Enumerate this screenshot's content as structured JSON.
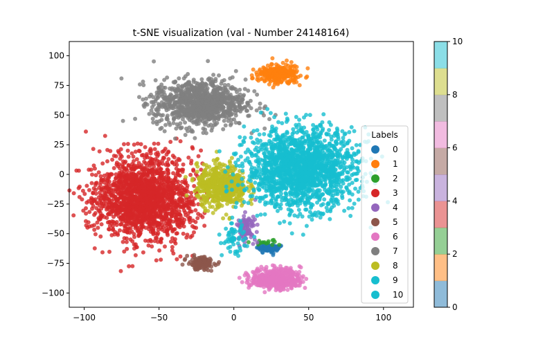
{
  "chart_data": {
    "type": "scatter",
    "title": "t-SNE visualization (val - Number 24148164)",
    "xlabel": "",
    "ylabel": "",
    "xlim": [
      -110,
      120
    ],
    "ylim": [
      -112,
      112
    ],
    "xticks": [
      -100,
      -50,
      0,
      50,
      100
    ],
    "yticks": [
      -100,
      -75,
      -50,
      -25,
      0,
      25,
      50,
      75,
      100
    ],
    "legend": {
      "title": "Labels",
      "placement": "center-right",
      "entries": [
        "0",
        "1",
        "2",
        "3",
        "4",
        "5",
        "6",
        "7",
        "8",
        "9",
        "10"
      ]
    },
    "series": [
      {
        "name": "0",
        "color": "#1f77b4",
        "center": [
          23,
          -62
        ],
        "spread": [
          6,
          3
        ],
        "approx_points": 120
      },
      {
        "name": "1",
        "color": "#ff7f0e",
        "center": [
          30,
          85
        ],
        "spread": [
          12,
          7
        ],
        "approx_points": 250
      },
      {
        "name": "2",
        "color": "#2ca02c",
        "center": [
          22,
          -58
        ],
        "spread": [
          8,
          4
        ],
        "approx_points": 15
      },
      {
        "name": "3",
        "color": "#d62728",
        "center": [
          -60,
          -20
        ],
        "spread": [
          30,
          32
        ],
        "approx_points": 1800
      },
      {
        "name": "4",
        "color": "#9467bd",
        "center": [
          8,
          -45
        ],
        "spread": [
          6,
          10
        ],
        "approx_points": 90
      },
      {
        "name": "5",
        "color": "#8c564b",
        "center": [
          -22,
          -75
        ],
        "spread": [
          8,
          5
        ],
        "approx_points": 130
      },
      {
        "name": "6",
        "color": "#e377c2",
        "center": [
          28,
          -88
        ],
        "spread": [
          15,
          8
        ],
        "approx_points": 450
      },
      {
        "name": "7",
        "color": "#7f7f7f",
        "center": [
          -23,
          60
        ],
        "spread": [
          28,
          18
        ],
        "approx_points": 1000
      },
      {
        "name": "8",
        "color": "#bcbd22",
        "center": [
          -8,
          -10
        ],
        "spread": [
          15,
          16
        ],
        "approx_points": 600
      },
      {
        "name": "9",
        "color": "#17becf",
        "center": [
          45,
          5
        ],
        "spread": [
          33,
          30
        ],
        "approx_points": 1800
      },
      {
        "name": "10",
        "color": "#17becf",
        "center": [
          0,
          -55
        ],
        "spread": [
          7,
          12
        ],
        "approx_points": 60
      }
    ],
    "colorbar": {
      "range": [
        0,
        10
      ],
      "ticks": [
        "0",
        "2",
        "4",
        "6",
        "8",
        "10"
      ],
      "colors": [
        "#1f77b4",
        "#ff7f0e",
        "#2ca02c",
        "#d62728",
        "#9467bd",
        "#8c564b",
        "#e377c2",
        "#7f7f7f",
        "#bcbd22",
        "#17becf"
      ],
      "alpha": 0.5
    },
    "grid": false
  }
}
